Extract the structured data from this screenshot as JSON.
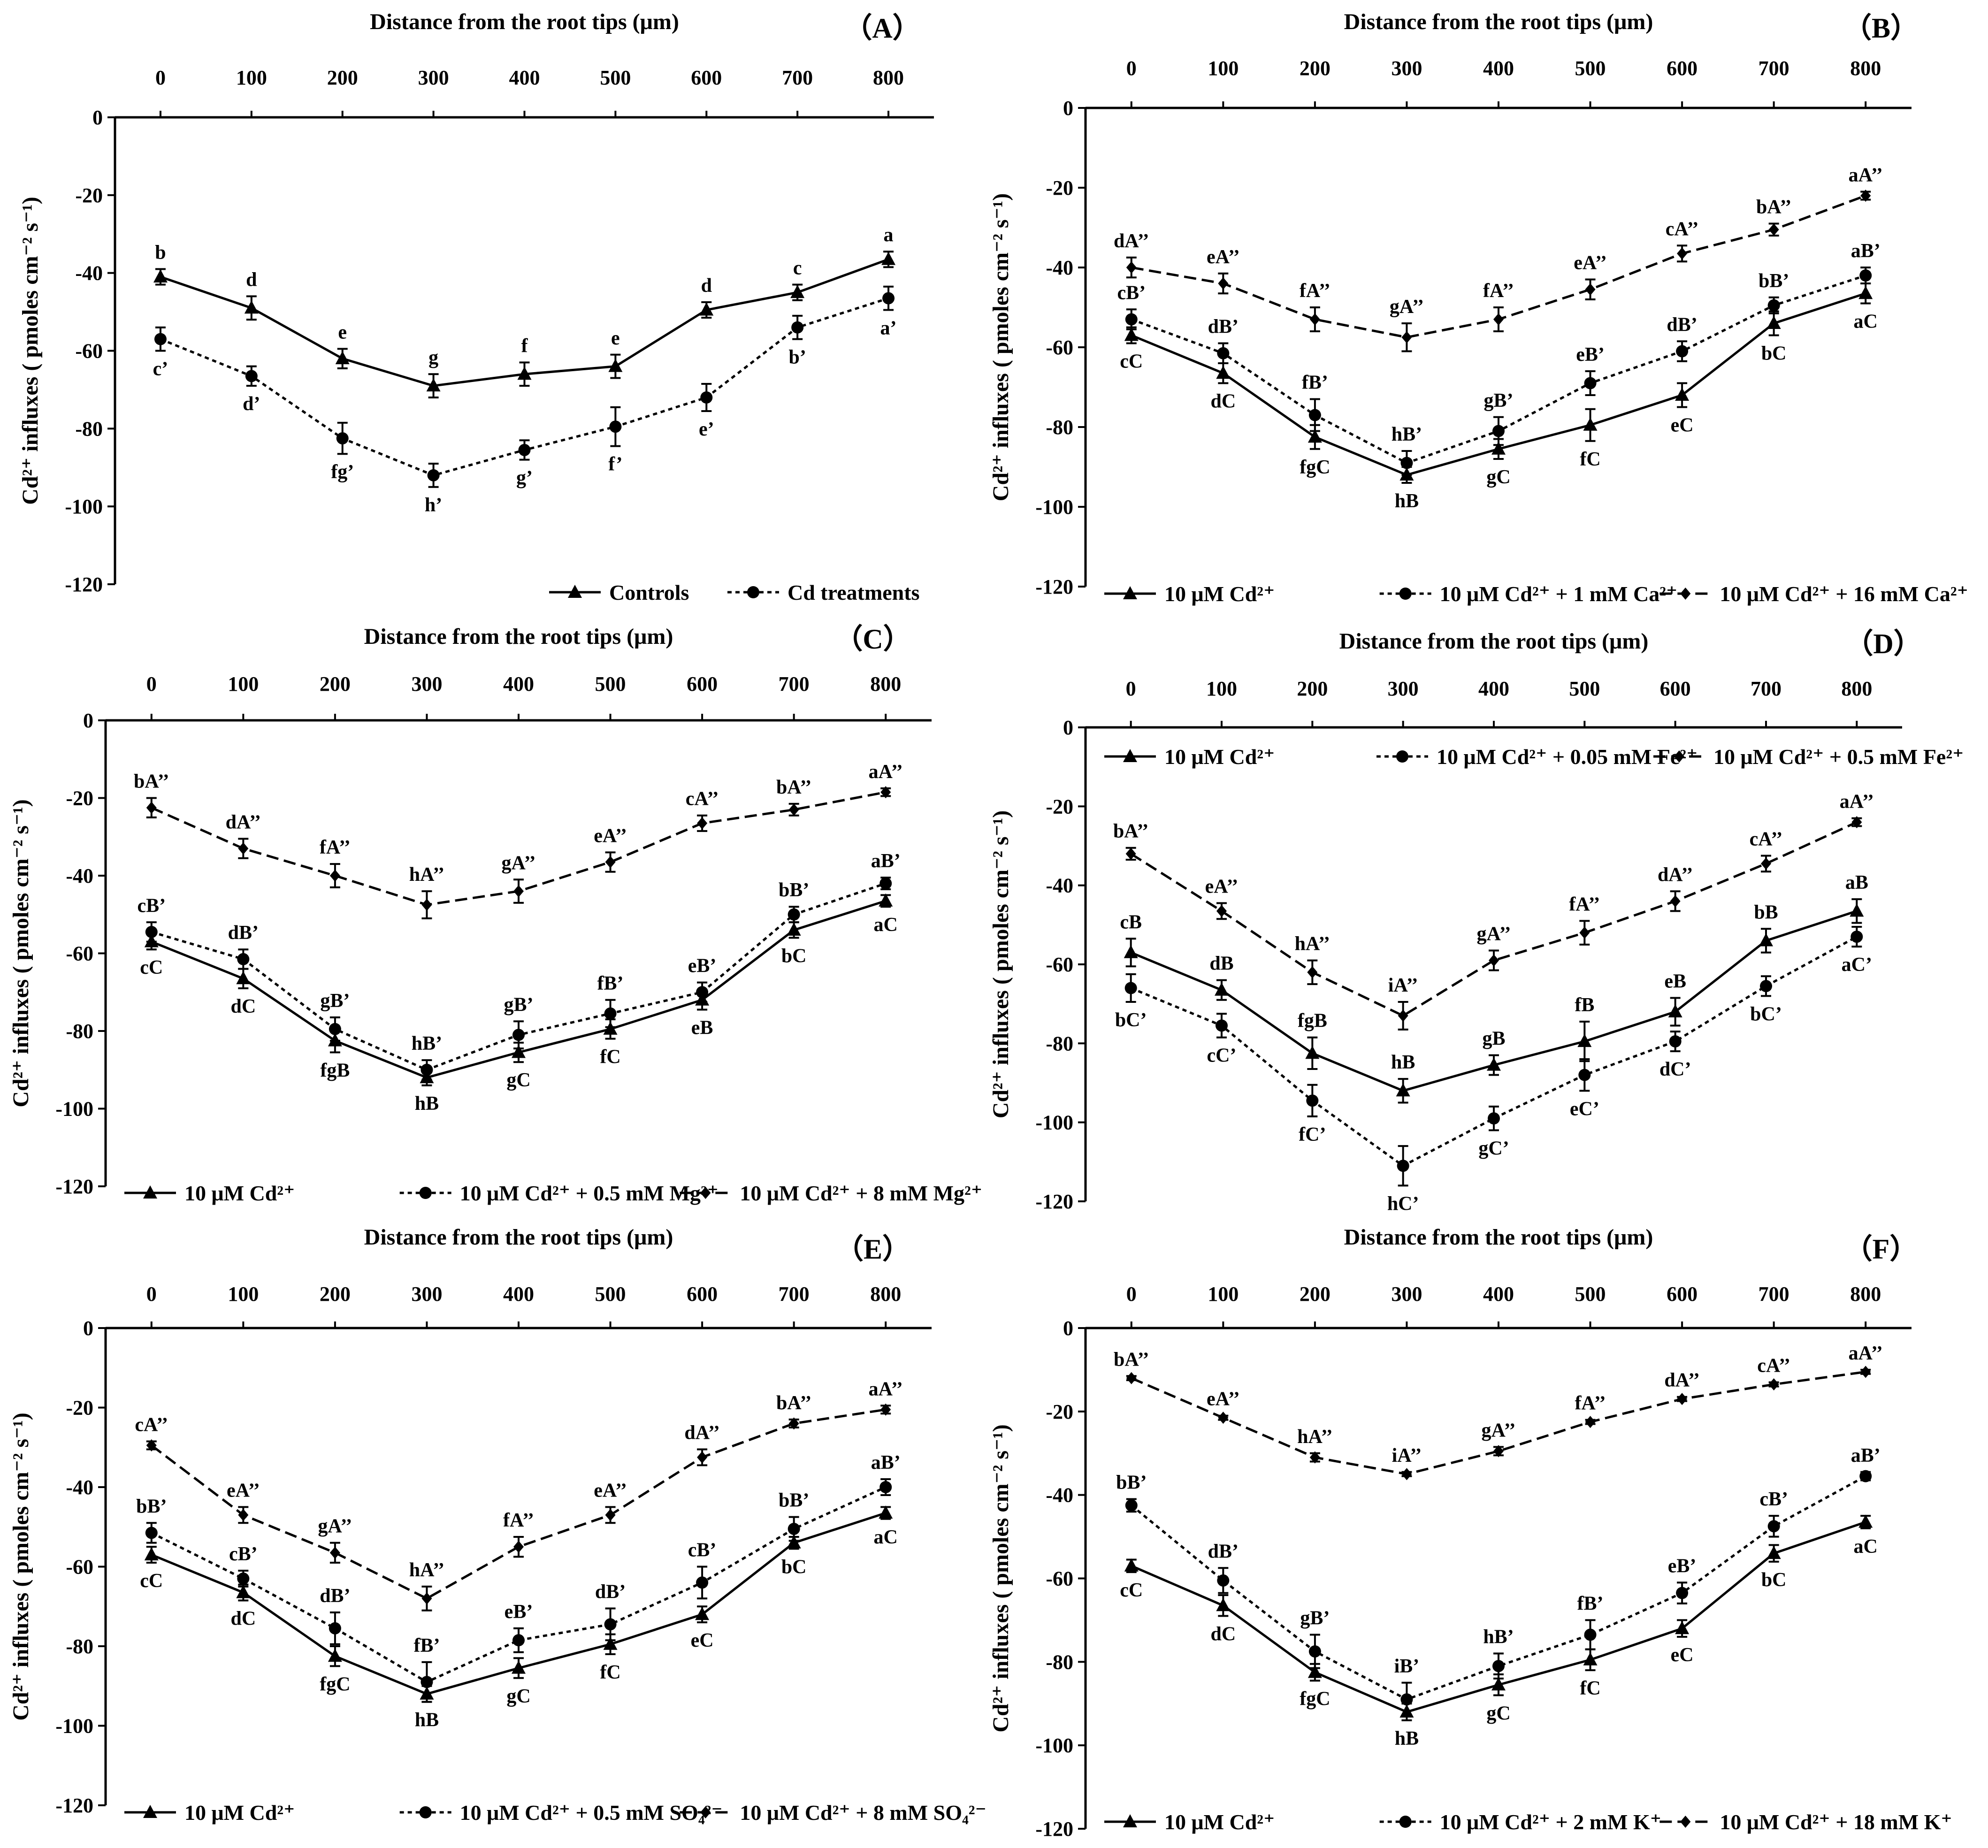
{
  "chart_data": [
    {
      "type": "line",
      "panel_label": "（A）",
      "title": "Distance from the root tips (μm)",
      "xlabel": "Distance from the root tips (μm)",
      "ylabel": "Cd²⁺ influxes ( pmoles cm⁻² s⁻¹)",
      "x": [
        0,
        100,
        200,
        300,
        400,
        500,
        600,
        700,
        800
      ],
      "xlim": [
        -50,
        850
      ],
      "ylim": [
        -120,
        0
      ],
      "yticks": [
        0,
        -20,
        -40,
        -60,
        -80,
        -100,
        -120
      ],
      "xtick_labels": [
        "0",
        "100",
        "200",
        "300",
        "400",
        "500",
        "600",
        "700",
        "800"
      ],
      "ytick_labels": [
        "0",
        "-20",
        "-40",
        "-60",
        "-80",
        "-100",
        "-120"
      ],
      "legend_position": "bottom-right",
      "series": [
        {
          "name": "Controls",
          "marker": "triangle",
          "dash": "solid",
          "values": [
            -41,
            -49,
            -62,
            -69,
            -66,
            -64,
            -49.5,
            -45,
            -36.5
          ],
          "errors": [
            2,
            3,
            2.5,
            3,
            3,
            3,
            2,
            2,
            2
          ],
          "labels": [
            "b",
            "d",
            "e",
            "g",
            "f",
            "e",
            "d",
            "c",
            "a"
          ],
          "label_side": "above"
        },
        {
          "name": "Cd treatments",
          "marker": "circle",
          "dash": "dotted",
          "values": [
            -57,
            -66.5,
            -82.5,
            -92,
            -85.5,
            -79.5,
            -72,
            -54,
            -46.5
          ],
          "errors": [
            3,
            2.5,
            4,
            3,
            2.5,
            5,
            3.5,
            3,
            3
          ],
          "labels": [
            "c’",
            "d’",
            "fg’",
            "h’",
            "g’",
            "f’",
            "e’",
            "b’",
            "a’"
          ],
          "label_side": "below"
        }
      ]
    },
    {
      "type": "line",
      "panel_label": "（B）",
      "title": "Distance from the root tips (μm)",
      "xlabel": "Distance from the root tips (μm)",
      "ylabel": "Cd²⁺ influxes ( pmoles cm⁻² s⁻¹)",
      "x": [
        0,
        100,
        200,
        300,
        400,
        500,
        600,
        700,
        800
      ],
      "xlim": [
        -50,
        850
      ],
      "ylim": [
        -120,
        0
      ],
      "yticks": [
        0,
        -20,
        -40,
        -60,
        -80,
        -100,
        -120
      ],
      "xtick_labels": [
        "0",
        "100",
        "200",
        "300",
        "400",
        "500",
        "600",
        "700",
        "800"
      ],
      "ytick_labels": [
        "0",
        "-20",
        "-40",
        "-60",
        "-80",
        "-100",
        "-120"
      ],
      "legend_position": "bottom",
      "series": [
        {
          "name": "10 μM Cd²⁺",
          "marker": "triangle",
          "dash": "solid",
          "values": [
            -57,
            -66.5,
            -82.5,
            -92,
            -85.5,
            -79.5,
            -72,
            -54,
            -46.5
          ],
          "errors": [
            2,
            2.5,
            3,
            2,
            2.5,
            4,
            3,
            3,
            2.5
          ],
          "labels": [
            "cC",
            "dC",
            "fgC",
            "hB",
            "gC",
            "fC",
            "eC",
            "bC",
            "aC"
          ],
          "label_side": "below"
        },
        {
          "name": "10 μM Cd²⁺ + 1 mM Ca²⁺",
          "marker": "circle",
          "dash": "dotted",
          "values": [
            -53,
            -61.5,
            -77,
            -89,
            -81,
            -69,
            -61,
            -49.5,
            -42
          ],
          "errors": [
            2.5,
            2.5,
            4,
            3,
            3.5,
            3,
            2.5,
            2,
            2
          ],
          "labels": [
            "cB’",
            "dB’",
            "fB’",
            "hB’",
            "gB’",
            "eB’",
            "dB’",
            "bB’",
            "aB’"
          ],
          "label_side": "above"
        },
        {
          "name": "10 μM Cd²⁺ + 16 mM Ca²⁺",
          "marker": "diamond",
          "dash": "dashed",
          "values": [
            -40,
            -44,
            -53,
            -57.5,
            -53,
            -45.5,
            -36.5,
            -30.5,
            -22
          ],
          "errors": [
            2.5,
            2.5,
            3,
            3.5,
            3,
            2.5,
            2,
            1.5,
            1
          ],
          "labels": [
            "dA’’",
            "eA’’",
            "fA’’",
            "gA’’",
            "fA’’",
            "eA’’",
            "cA’’",
            "bA’’",
            "aA’’"
          ],
          "label_side": "above"
        }
      ]
    },
    {
      "type": "line",
      "panel_label": "（C）",
      "title": "Distance from the root tips (μm)",
      "xlabel": "Distance from the root tips (μm)",
      "ylabel": "Cd²⁺ influxes ( pmoles cm⁻² s⁻¹)",
      "x": [
        0,
        100,
        200,
        300,
        400,
        500,
        600,
        700,
        800
      ],
      "xlim": [
        -50,
        850
      ],
      "ylim": [
        -120,
        0
      ],
      "yticks": [
        0,
        -20,
        -40,
        -60,
        -80,
        -100,
        -120
      ],
      "xtick_labels": [
        "0",
        "100",
        "200",
        "300",
        "400",
        "500",
        "600",
        "700",
        "800"
      ],
      "ytick_labels": [
        "0",
        "-20",
        "-40",
        "-60",
        "-80",
        "-100",
        "-120"
      ],
      "legend_position": "bottom",
      "series": [
        {
          "name": "10 μM Cd²⁺",
          "marker": "triangle",
          "dash": "solid",
          "values": [
            -57,
            -66.5,
            -82.5,
            -92,
            -85.5,
            -79.5,
            -72,
            -54,
            -46.5
          ],
          "errors": [
            2,
            2.5,
            3,
            2,
            2.5,
            2.5,
            2.5,
            2,
            1.5
          ],
          "labels": [
            "cC",
            "dC",
            "fgB",
            "hB",
            "gC",
            "fC",
            "eB",
            "bC",
            "aC"
          ],
          "label_side": "below"
        },
        {
          "name": "10 μM Cd²⁺ + 0.5 mM Mg²⁺",
          "marker": "circle",
          "dash": "dotted",
          "values": [
            -54.5,
            -61.5,
            -79.5,
            -90,
            -81,
            -75.5,
            -70,
            -50,
            -42
          ],
          "errors": [
            2.5,
            2.5,
            3,
            2.5,
            3.5,
            3.5,
            2.5,
            2,
            1.5
          ],
          "labels": [
            "cB’",
            "dB’",
            "gB’",
            "hB’",
            "gB’",
            "fB’",
            "eB’",
            "bB’",
            "aB’"
          ],
          "label_side": "above"
        },
        {
          "name": "10 μM Cd²⁺ + 8 mM Mg²⁺",
          "marker": "diamond",
          "dash": "dashed",
          "values": [
            -22.5,
            -33,
            -40,
            -47.5,
            -44,
            -36.5,
            -26.5,
            -23,
            -18.5
          ],
          "errors": [
            2.5,
            2.5,
            3,
            3.5,
            3,
            2.5,
            2,
            1.5,
            1
          ],
          "labels": [
            "bA’’",
            "dA’’",
            "fA’’",
            "hA’’",
            "gA’’",
            "eA’’",
            "cA’’",
            "bA’’",
            "aA’’"
          ],
          "label_side": "above"
        }
      ]
    },
    {
      "type": "line",
      "panel_label": "（D）",
      "title": "Distance from the root tips (μm)",
      "xlabel": "Distance from the root tips (μm)",
      "ylabel": "Cd²⁺ influxes ( pmoles cm⁻² s⁻¹)",
      "x": [
        0,
        100,
        200,
        300,
        400,
        500,
        600,
        700,
        800
      ],
      "xlim": [
        -50,
        850
      ],
      "ylim": [
        -120,
        0
      ],
      "yticks": [
        0,
        -20,
        -40,
        -60,
        -80,
        -100,
        -120
      ],
      "xtick_labels": [
        "0",
        "100",
        "200",
        "300",
        "400",
        "500",
        "600",
        "700",
        "800"
      ],
      "ytick_labels": [
        "0",
        "-20",
        "-40",
        "-60",
        "-80",
        "-100",
        "-120"
      ],
      "legend_position": "top",
      "series": [
        {
          "name": "10 μM Cd²⁺",
          "marker": "triangle",
          "dash": "solid",
          "values": [
            -57,
            -66.5,
            -82.5,
            -92,
            -85.5,
            -79.5,
            -72,
            -54,
            -46.5
          ],
          "errors": [
            3.5,
            2.5,
            4,
            3,
            2.5,
            5,
            3.5,
            3,
            3
          ],
          "labels": [
            "cB",
            "dB",
            "fgB",
            "hB",
            "gB",
            "fB",
            "eB",
            "bB",
            "aB"
          ],
          "label_side": "above"
        },
        {
          "name": "10 μM Cd²⁺ + 0.05 mM Fe²⁺",
          "marker": "circle",
          "dash": "dotted",
          "values": [
            -66,
            -75.5,
            -94.5,
            -111,
            -99,
            -88,
            -79.5,
            -65.5,
            -53
          ],
          "errors": [
            3.5,
            3,
            4,
            5,
            3,
            4,
            2.5,
            2.5,
            2.5
          ],
          "labels": [
            "bC’",
            "cC’",
            "fC’",
            "hC’",
            "gC’",
            "eC’",
            "dC’",
            "bC’",
            "aC’"
          ],
          "label_side": "below"
        },
        {
          "name": "10 μM Cd²⁺ + 0.5 mM Fe²⁺",
          "marker": "diamond",
          "dash": "dashed",
          "values": [
            -32,
            -46.5,
            -62,
            -73,
            -59,
            -52,
            -44,
            -34.5,
            -24
          ],
          "errors": [
            1.5,
            2,
            3,
            3.5,
            2.5,
            3,
            2.5,
            2,
            1
          ],
          "labels": [
            "bA’’",
            "eA’’",
            "hA’’",
            "iA’’",
            "gA’’",
            "fA’’",
            "dA’’",
            "cA’’",
            "aA’’"
          ],
          "label_side": "above"
        }
      ]
    },
    {
      "type": "line",
      "panel_label": "（E）",
      "title": "Distance from the root tips (μm)",
      "xlabel": "Distance from the root tips (μm)",
      "ylabel": "Cd²⁺ influxes ( pmoles cm⁻² s⁻¹)",
      "x": [
        0,
        100,
        200,
        300,
        400,
        500,
        600,
        700,
        800
      ],
      "xlim": [
        -50,
        850
      ],
      "ylim": [
        -120,
        0
      ],
      "yticks": [
        0,
        -20,
        -40,
        -60,
        -80,
        -100,
        -120
      ],
      "xtick_labels": [
        "0",
        "100",
        "200",
        "300",
        "400",
        "500",
        "600",
        "700",
        "800"
      ],
      "ytick_labels": [
        "0",
        "-20",
        "-40",
        "-60",
        "-80",
        "-100",
        "-120"
      ],
      "legend_position": "bottom",
      "series": [
        {
          "name": "10 μM Cd²⁺",
          "marker": "triangle",
          "dash": "solid",
          "values": [
            -57,
            -66.5,
            -82.5,
            -92,
            -85.5,
            -79.5,
            -72,
            -54,
            -46.5
          ],
          "errors": [
            2,
            2,
            2.5,
            2,
            2.5,
            2.5,
            2,
            1.5,
            1.5
          ],
          "labels": [
            "cC",
            "dC",
            "fgC",
            "hB",
            "gC",
            "fC",
            "eC",
            "bC",
            "aC"
          ],
          "label_side": "below"
        },
        {
          "name": "10 μM Cd²⁺ + 0.5 mM SO₄²⁻",
          "marker": "circle",
          "dash": "dotted",
          "values": [
            -51.5,
            -63,
            -75.5,
            -89,
            -78.5,
            -74.5,
            -64,
            -50.5,
            -40
          ],
          "errors": [
            2.5,
            2,
            4,
            5,
            3,
            4,
            4,
            3,
            2
          ],
          "labels": [
            "bB’",
            "cB’",
            "dB’",
            "fB’",
            "eB’",
            "dB’",
            "cB’",
            "bB’",
            "aB’"
          ],
          "label_side": "above"
        },
        {
          "name": "10 μM Cd²⁺ + 8 mM SO₄²⁻",
          "marker": "diamond",
          "dash": "dashed",
          "values": [
            -29.5,
            -47,
            -56.5,
            -68,
            -55,
            -47,
            -32.5,
            -24,
            -20.5
          ],
          "errors": [
            1,
            2,
            2.5,
            3,
            2.5,
            2,
            2,
            1,
            1
          ],
          "labels": [
            "cA’’",
            "eA’’",
            "gA’’",
            "hA’’",
            "fA’’",
            "eA’’",
            "dA’’",
            "bA’’",
            "aA’’"
          ],
          "label_side": "above"
        }
      ]
    },
    {
      "type": "line",
      "panel_label": "（F）",
      "title": "Distance from the root tips (μm)",
      "xlabel": "Distance from the root tips (μm)",
      "ylabel": "Cd²⁺ influxes ( pmoles cm⁻² s⁻¹)",
      "x": [
        0,
        100,
        200,
        300,
        400,
        500,
        600,
        700,
        800
      ],
      "xlim": [
        -50,
        850
      ],
      "ylim": [
        -120,
        0
      ],
      "yticks": [
        0,
        -20,
        -40,
        -60,
        -80,
        -100,
        -120
      ],
      "xtick_labels": [
        "0",
        "100",
        "200",
        "300",
        "400",
        "500",
        "600",
        "700",
        "800"
      ],
      "ytick_labels": [
        "0",
        "-20",
        "-40",
        "-60",
        "-80",
        "-100",
        "-120"
      ],
      "legend_position": "bottom",
      "series": [
        {
          "name": "10 μM Cd²⁺",
          "marker": "triangle",
          "dash": "solid",
          "values": [
            -57,
            -66.5,
            -82.5,
            -92,
            -85.5,
            -79.5,
            -72,
            -54,
            -46.5
          ],
          "errors": [
            1.5,
            2.5,
            2,
            2,
            2.5,
            2.5,
            2,
            2,
            1.5
          ],
          "labels": [
            "cC",
            "dC",
            "fgC",
            "hB",
            "gC",
            "fC",
            "eC",
            "bC",
            "aC"
          ],
          "label_side": "below"
        },
        {
          "name": "10 μM Cd²⁺ + 2 mM K⁺",
          "marker": "circle",
          "dash": "dotted",
          "values": [
            -42.5,
            -60.5,
            -77.5,
            -89,
            -81,
            -73.5,
            -63.5,
            -47.5,
            -35.5
          ],
          "errors": [
            1.5,
            3,
            4,
            4,
            3,
            3.5,
            2.5,
            2.5,
            1
          ],
          "labels": [
            "bB’",
            "dB’",
            "gB’",
            "iB’",
            "hB’",
            "fB’",
            "eB’",
            "cB’",
            "aB’"
          ],
          "label_side": "above"
        },
        {
          "name": "10 μM Cd²⁺ + 18 mM K⁺",
          "marker": "diamond",
          "dash": "dashed",
          "values": [
            -12,
            -21.5,
            -31,
            -35,
            -29.5,
            -22.5,
            -17,
            -13.5,
            -10.5
          ],
          "errors": [
            0.5,
            0.5,
            1,
            0.5,
            1,
            0.5,
            0.5,
            0.5,
            0.5
          ],
          "labels": [
            "bA’’",
            "eA’’",
            "hA’’",
            "iA’’",
            "gA’’",
            "fA’’",
            "dA’’",
            "cA’’",
            "aA’’"
          ],
          "label_side": "above"
        }
      ]
    }
  ]
}
